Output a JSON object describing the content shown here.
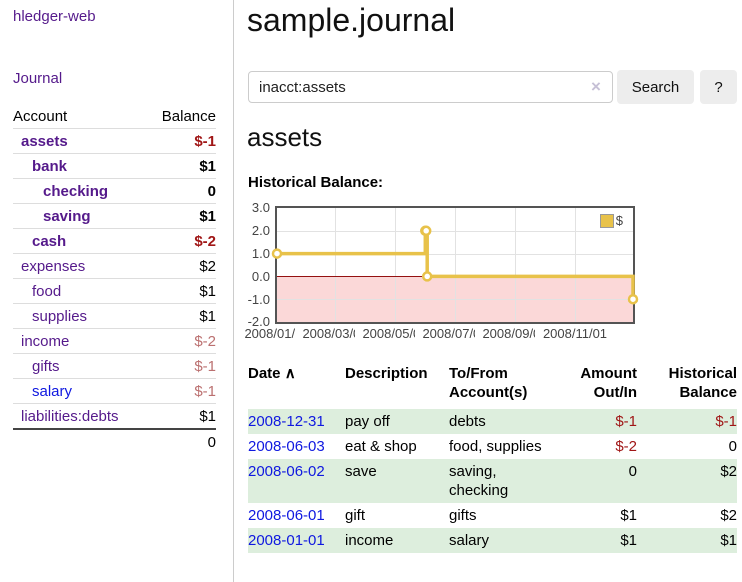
{
  "app_title": "hledger-web",
  "sidebar": {
    "journal_link": "Journal",
    "headers": {
      "account": "Account",
      "balance": "Balance"
    },
    "accounts": [
      {
        "name": "assets",
        "balance": "$-1"
      },
      {
        "name": "bank",
        "balance": "$1"
      },
      {
        "name": "checking",
        "balance": "0"
      },
      {
        "name": "saving",
        "balance": "$1"
      },
      {
        "name": "cash",
        "balance": "$-2"
      },
      {
        "name": "expenses",
        "balance": "$2"
      },
      {
        "name": "food",
        "balance": "$1"
      },
      {
        "name": "supplies",
        "balance": "$1"
      },
      {
        "name": "income",
        "balance": "$-2"
      },
      {
        "name": "gifts",
        "balance": "$-1"
      },
      {
        "name": "salary",
        "balance": "$-1"
      },
      {
        "name": "liabilities:debts",
        "balance": "$1"
      }
    ],
    "total": "0"
  },
  "main": {
    "title": "sample.journal",
    "search": {
      "value": "inacct:assets",
      "clear_icon": "×",
      "search_button": "Search",
      "help_button": "?"
    },
    "account_heading": "assets",
    "chart_label": "Historical Balance:"
  },
  "chart_data": {
    "type": "line",
    "line_style": "step",
    "title": "Historical Balance",
    "legend": {
      "label": "$",
      "position": "top-right"
    },
    "series": [
      {
        "name": "$",
        "color": "#e8c24a",
        "points": [
          [
            "2008-01-01",
            1
          ],
          [
            "2008-06-01",
            2
          ],
          [
            "2008-06-02",
            2
          ],
          [
            "2008-06-03",
            0
          ],
          [
            "2008-12-31",
            -1
          ]
        ]
      }
    ],
    "xlim": [
      "2008-01-01",
      "2008-12-31"
    ],
    "ylim": [
      -2,
      3
    ],
    "y_tick_labels": [
      "3.0",
      "2.0",
      "1.0",
      "0.0",
      "-1.0",
      "-2.0"
    ],
    "x_tick_labels": [
      "2008/01/01",
      "2008/03/01",
      "2008/05/01",
      "2008/07/01",
      "2008/09/01",
      "2008/11/01"
    ],
    "grid": true,
    "zero_line_color": "#941111",
    "negative_region_color": "#fbd8d8"
  },
  "register": {
    "headers": [
      "Date",
      "Description",
      "To/From Account(s)",
      "Amount Out/In",
      "Historical Balance"
    ],
    "sort_icon": "∧",
    "rows": [
      {
        "date": "2008-12-31",
        "description": "pay off",
        "accounts": "debts",
        "amount": "$-1",
        "balance": "$-1"
      },
      {
        "date": "2008-06-03",
        "description": "eat & shop",
        "accounts": "food, supplies",
        "amount": "$-2",
        "balance": "0"
      },
      {
        "date": "2008-06-02",
        "description": "save",
        "accounts": "saving, checking",
        "amount": "0",
        "balance": "$2"
      },
      {
        "date": "2008-06-01",
        "description": "gift",
        "accounts": "gifts",
        "amount": "$1",
        "balance": "$2"
      },
      {
        "date": "2008-01-01",
        "description": "income",
        "accounts": "salary",
        "amount": "$1",
        "balance": "$1"
      }
    ]
  }
}
